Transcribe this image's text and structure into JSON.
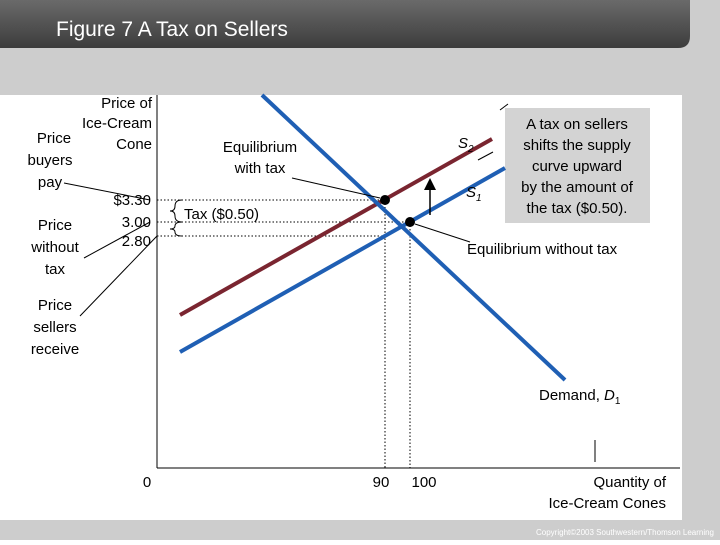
{
  "header": {
    "title": "Figure 7 A Tax on Sellers"
  },
  "y_axis": {
    "label_lines": [
      "Price of",
      "Ice-Cream",
      "Cone"
    ],
    "ticks": [
      "$3.30",
      "3.00",
      "2.80"
    ]
  },
  "x_axis": {
    "label_lines": [
      "Quantity of",
      "Ice-Cream Cones"
    ],
    "ticks": [
      "0",
      "90",
      "100"
    ]
  },
  "side_labels": {
    "buyers_pay": [
      "Price",
      "buyers",
      "pay"
    ],
    "without_tax": [
      "Price",
      "without",
      "tax"
    ],
    "sellers_receive": [
      "Price",
      "sellers",
      "receive"
    ]
  },
  "annotations": {
    "eq_with_tax": [
      "Equilibrium",
      "with tax"
    ],
    "eq_without_tax": "Equilibrium without tax",
    "tax": "Tax ($0.50)",
    "tax_note": [
      "A tax on sellers",
      "shifts the supply",
      "curve upward",
      "by the amount of",
      "the tax ($0.50)."
    ]
  },
  "curves": {
    "s2": {
      "letter": "S",
      "sub": "2"
    },
    "s1": {
      "letter": "S",
      "sub": "1"
    },
    "demand": {
      "text": "Demand, ",
      "letter": "D",
      "sub": "1"
    }
  },
  "footer": {
    "copyright": "Copyright©2003 Southwestern/Thomson Learning"
  }
}
